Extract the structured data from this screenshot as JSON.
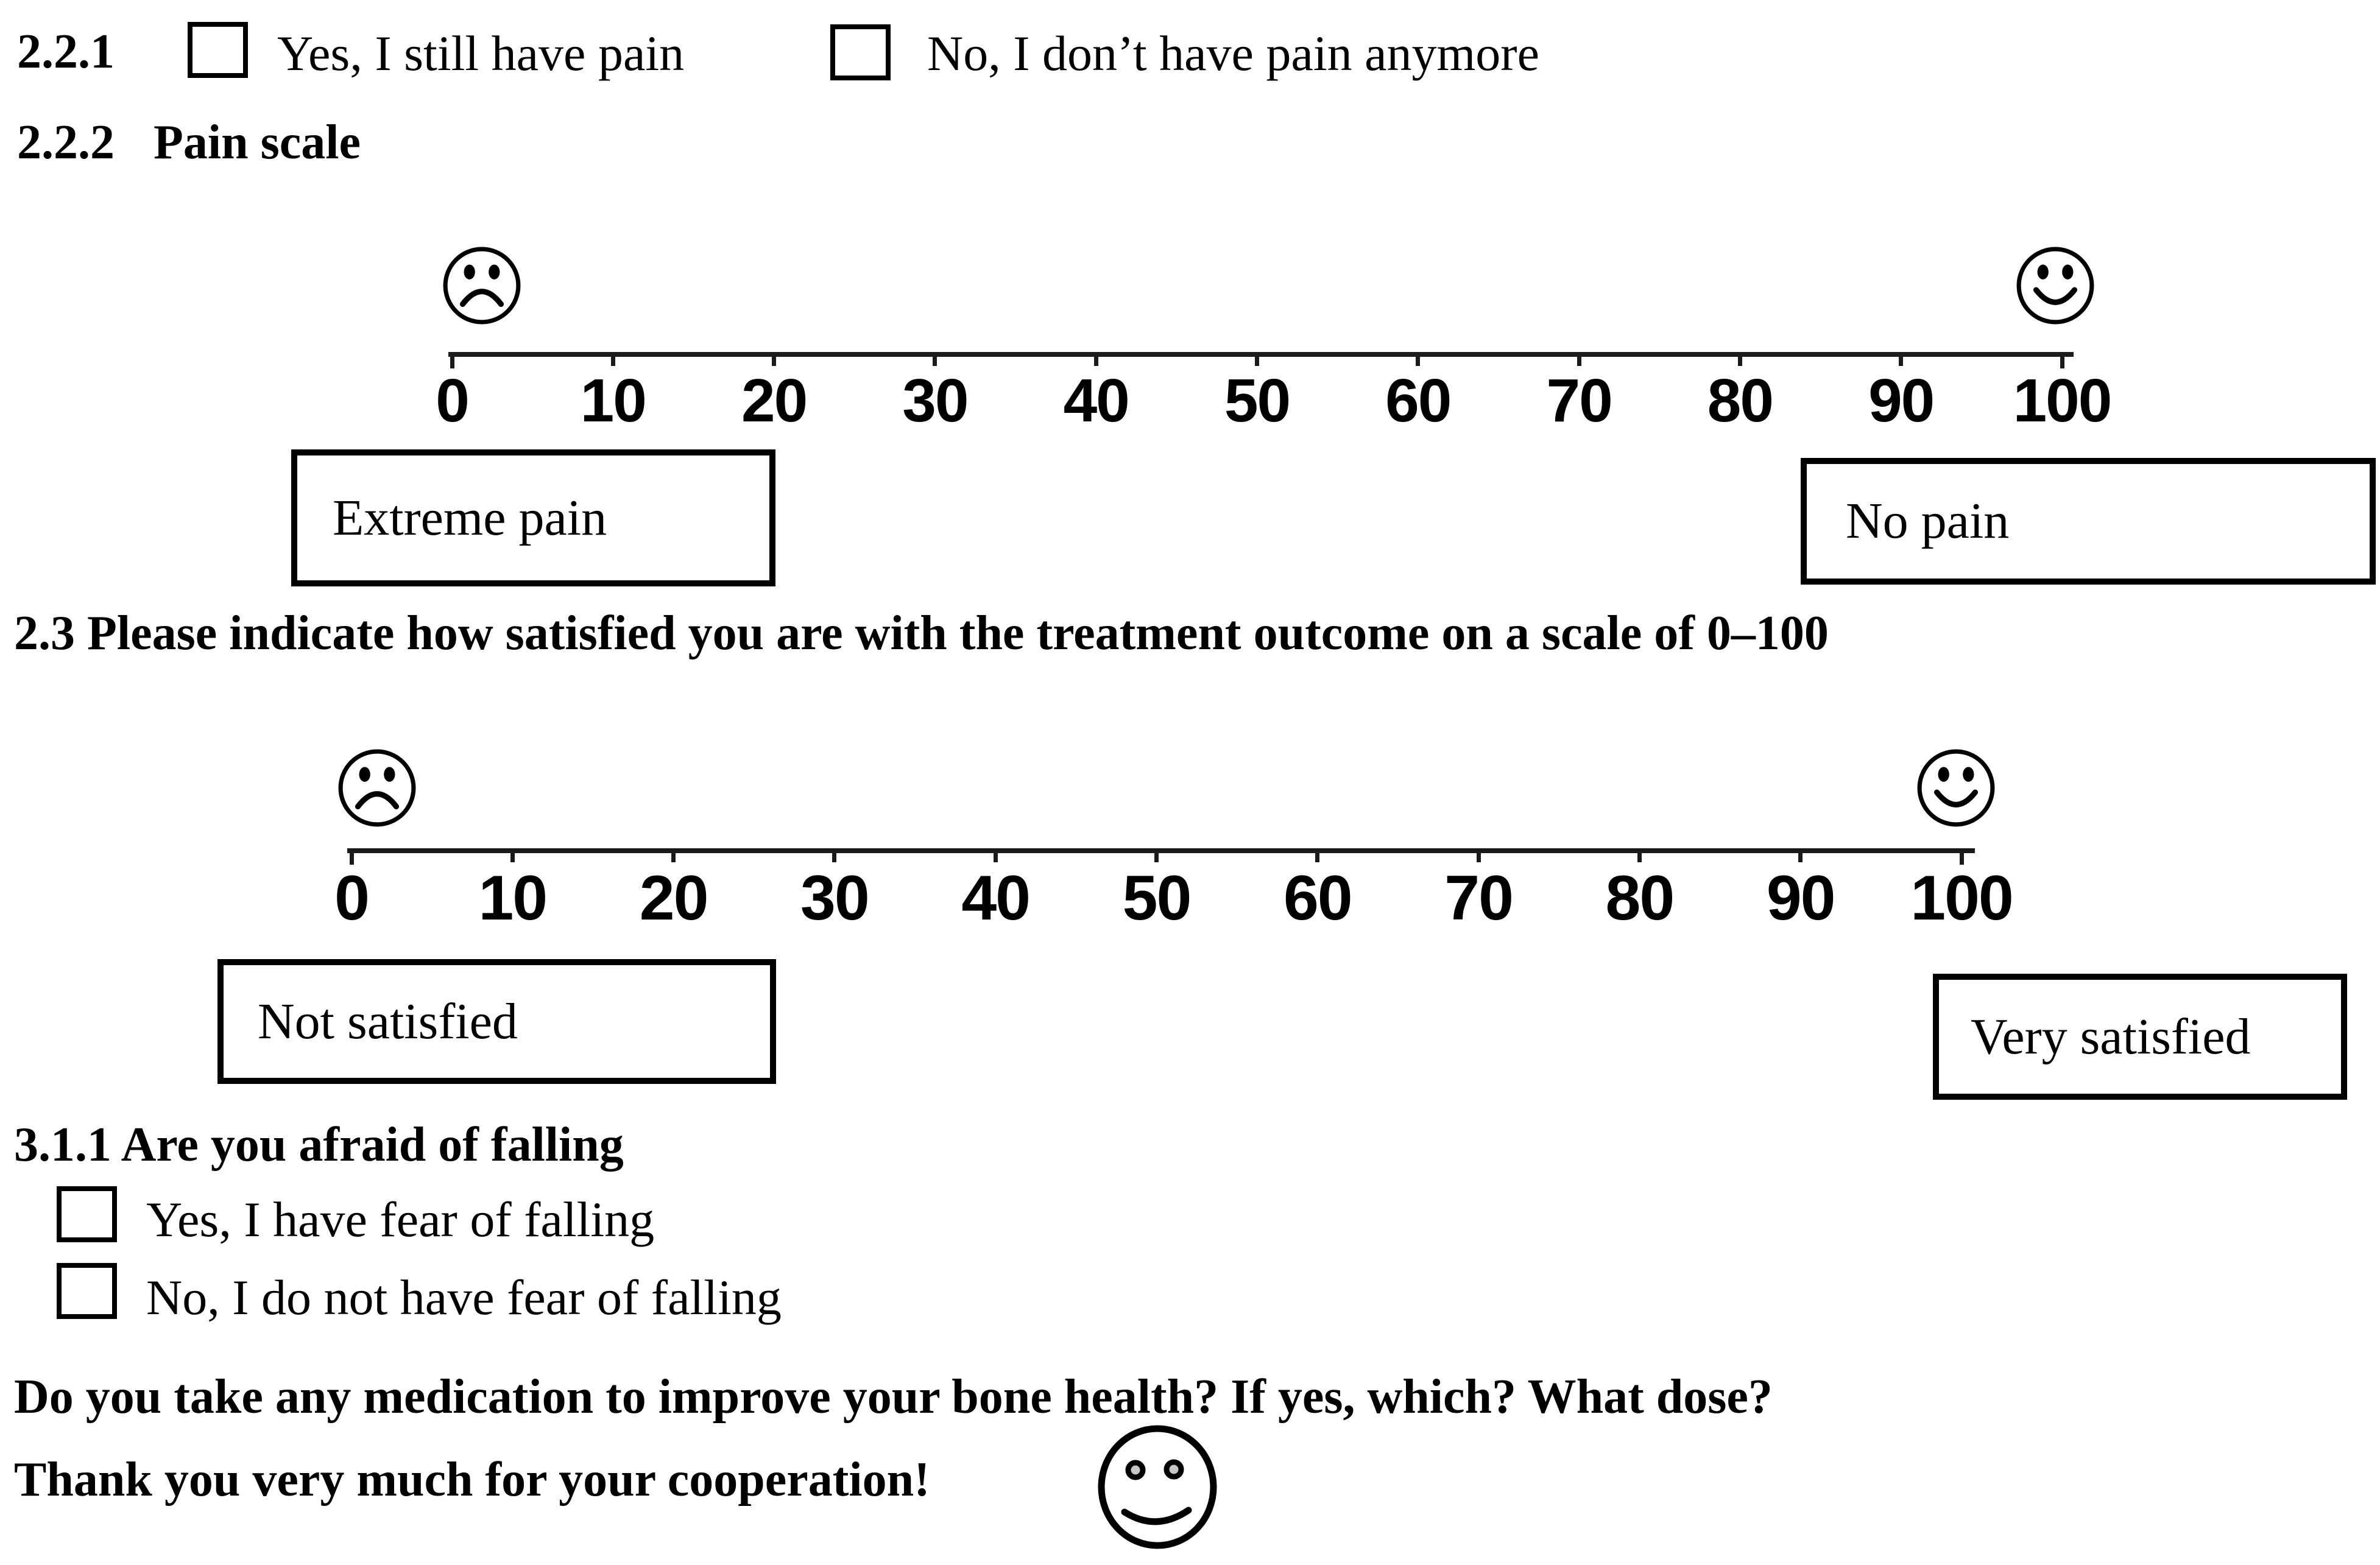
{
  "questions": {
    "q221": {
      "number": "2.2.1",
      "options": [
        {
          "label": "Yes, I still have pain",
          "checked": false
        },
        {
          "label": "No, I don’t have pain anymore",
          "checked": false
        }
      ]
    },
    "q222": {
      "number": "2.2.2",
      "title": "Pain scale"
    },
    "q23": {
      "text": "2.3 Please indicate how satisfied you are with the treatment outcome on a scale of 0–100"
    },
    "q311": {
      "title": "3.1.1 Are you afraid of falling",
      "options": [
        {
          "label": "Yes, I have fear of falling",
          "checked": false
        },
        {
          "label": "No, I do not have fear of falling",
          "checked": false
        }
      ]
    },
    "medication": {
      "text": "Do you take any medication to improve your bone health? If yes, which? What dose?"
    },
    "thanks": {
      "text": "Thank you very much for your cooperation!"
    }
  },
  "scales": {
    "pain": {
      "min": 0,
      "max": 100,
      "ticks": [
        "0",
        "10",
        "20",
        "30",
        "40",
        "50",
        "60",
        "70",
        "80",
        "90",
        "100"
      ],
      "left_label": "Extreme pain",
      "right_label": "No pain",
      "left_icon": "sad-face",
      "right_icon": "happy-face"
    },
    "satisfaction": {
      "min": 0,
      "max": 100,
      "ticks": [
        "0",
        "10",
        "20",
        "30",
        "40",
        "50",
        "60",
        "70",
        "80",
        "90",
        "100"
      ],
      "left_label": "Not satisfied",
      "right_label": "Very satisfied",
      "left_icon": "sad-face",
      "right_icon": "happy-face"
    }
  },
  "icons": {
    "closing_icon": "smiley-face"
  },
  "colors": {
    "text": "#000000",
    "background": "#ffffff",
    "scale_line": "#1b1b1b",
    "smiley_eye_fill": "#c6c6c6"
  }
}
